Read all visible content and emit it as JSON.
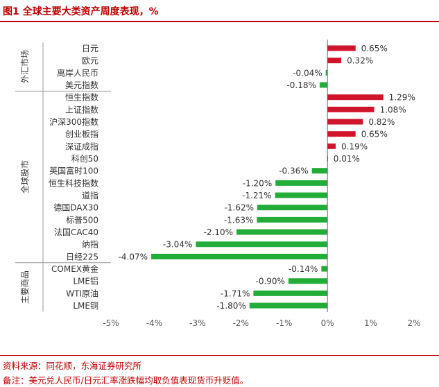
{
  "title": "图1  全球主要大类资产周度表现，%",
  "footnote": {
    "source": "资料来源：同花顺，东海证券研究所",
    "remark": "备注：美元兑人民币/日元汇率涨跌幅均取负值表现货币升贬值。"
  },
  "colors": {
    "positive": "#d0142c",
    "negative": "#22ac38",
    "accent": "#c00000"
  },
  "chart_data": {
    "type": "bar",
    "orientation": "horizontal",
    "title": "全球主要大类资产周度表现，%",
    "xlim": [
      -5,
      2
    ],
    "xticks": [
      "-5%",
      "-4%",
      "-3%",
      "-2%",
      "-1%",
      "0%",
      "1%",
      "2%"
    ],
    "groups": [
      {
        "name": "外汇市场",
        "items": [
          {
            "label": "日元",
            "value": 0.65,
            "value_label": "0.65%"
          },
          {
            "label": "欧元",
            "value": 0.32,
            "value_label": "0.32%"
          },
          {
            "label": "离岸人民币",
            "value": -0.04,
            "value_label": "-0.04%"
          },
          {
            "label": "美元指数",
            "value": -0.18,
            "value_label": "-0.18%"
          }
        ]
      },
      {
        "name": "全球股市",
        "items": [
          {
            "label": "恒生指数",
            "value": 1.29,
            "value_label": "1.29%"
          },
          {
            "label": "上证指数",
            "value": 1.08,
            "value_label": "1.08%"
          },
          {
            "label": "沪深300指数",
            "value": 0.82,
            "value_label": "0.82%"
          },
          {
            "label": "创业板指",
            "value": 0.65,
            "value_label": "0.65%"
          },
          {
            "label": "深证成指",
            "value": 0.19,
            "value_label": "0.19%"
          },
          {
            "label": "科创50",
            "value": 0.01,
            "value_label": "0.01%"
          },
          {
            "label": "英国富时100",
            "value": -0.36,
            "value_label": "-0.36%"
          },
          {
            "label": "恒生科技指数",
            "value": -1.2,
            "value_label": "-1.20%"
          },
          {
            "label": "道指",
            "value": -1.21,
            "value_label": "-1.21%"
          },
          {
            "label": "德国DAX30",
            "value": -1.62,
            "value_label": "-1.62%"
          },
          {
            "label": "标普500",
            "value": -1.63,
            "value_label": "-1.63%"
          },
          {
            "label": "法国CAC40",
            "value": -2.1,
            "value_label": "-2.10%"
          },
          {
            "label": "纳指",
            "value": -3.04,
            "value_label": "-3.04%"
          },
          {
            "label": "日经225",
            "value": -4.07,
            "value_label": "-4.07%"
          }
        ]
      },
      {
        "name": "主要商品",
        "items": [
          {
            "label": "COMEX黄金",
            "value": -0.14,
            "value_label": "-0.14%"
          },
          {
            "label": "LME铝",
            "value": -0.9,
            "value_label": "-0.90%"
          },
          {
            "label": "WTI原油",
            "value": -1.71,
            "value_label": "-1.71%"
          },
          {
            "label": "LME铜",
            "value": -1.8,
            "value_label": "-1.80%"
          }
        ]
      }
    ]
  }
}
